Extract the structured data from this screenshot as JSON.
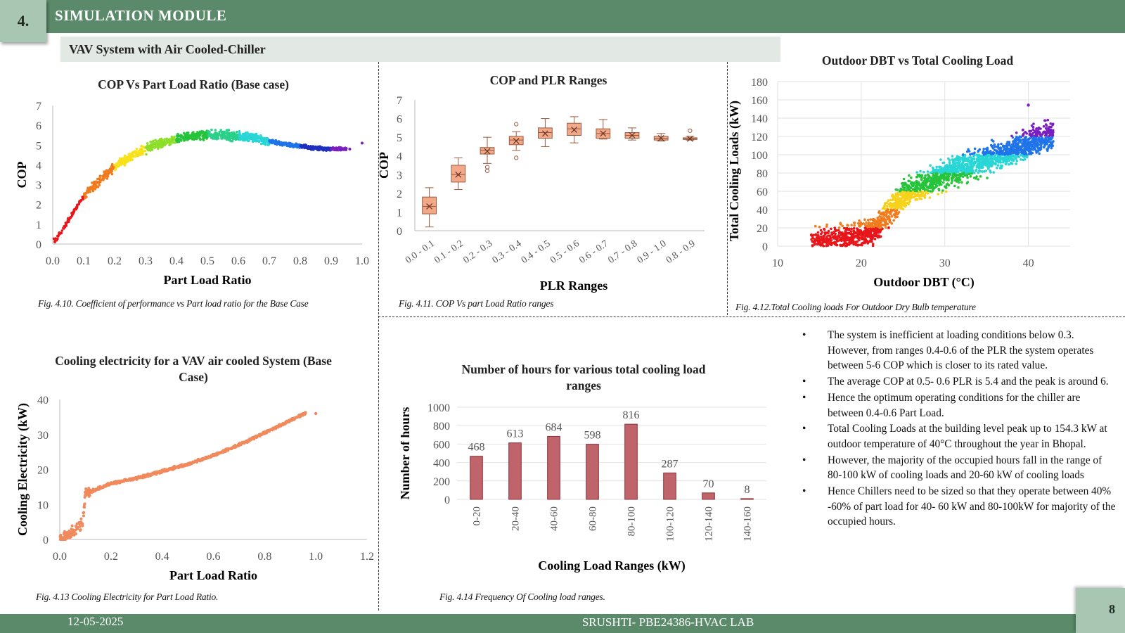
{
  "header": {
    "section_number": "4.",
    "section_title": "SIMULATION MODULE",
    "subtitle": "VAV System with Air Cooled-Chiller"
  },
  "colors": {
    "header_green": "#5a8a6a",
    "box_green": "#a9c6b3",
    "bar_fill": "#c0646b",
    "box_fill": "#f2a98a",
    "scatter_orange": "#f08a5d"
  },
  "charts": {
    "cop_plr": {
      "title": "COP Vs Part Load Ratio (Base case)",
      "xlabel": "Part Load Ratio",
      "ylabel": "COP",
      "xticks": [
        "0.0",
        "0.1",
        "0.2",
        "0.3",
        "0.4",
        "0.5",
        "0.6",
        "0.7",
        "0.8",
        "0.9",
        "1.0"
      ],
      "yticks": [
        "0",
        "1",
        "2",
        "3",
        "4",
        "5",
        "6",
        "7"
      ],
      "caption": "Fig. 4.10. Coefficient of performance vs Part load ratio for the Base Case"
    },
    "cop_ranges": {
      "title": "COP and PLR Ranges",
      "xlabel": "PLR Ranges",
      "ylabel": "COP",
      "yticks": [
        "0",
        "1",
        "2",
        "3",
        "4",
        "5",
        "6",
        "7"
      ],
      "caption": "Fig. 4.11. COP Vs part Load Ratio ranges"
    },
    "dbt_load": {
      "title": "Outdoor DBT vs Total Cooling Load",
      "xlabel": "Outdoor DBT (°C)",
      "ylabel": "Total Cooling Loads (kW)",
      "xticks": [
        "10",
        "20",
        "30",
        "40"
      ],
      "yticks": [
        "0",
        "20",
        "40",
        "60",
        "80",
        "100",
        "120",
        "140",
        "160",
        "180"
      ],
      "caption": "Fig. 4.12.Total Cooling loads For Outdoor Dry Bulb temperature"
    },
    "elec": {
      "title": "Cooling electricity for a VAV air cooled System (Base Case)",
      "xlabel": "Part Load Ratio",
      "ylabel": "Cooling Electricity (kW)",
      "xticks": [
        "0.0",
        "0.2",
        "0.4",
        "0.6",
        "0.8",
        "1.0",
        "1.2"
      ],
      "yticks": [
        "0",
        "10",
        "20",
        "30",
        "40"
      ],
      "caption": "Fig. 4.13 Cooling Electricity for Part Load Ratio."
    },
    "hours": {
      "title": "Number of hours for various total cooling load ranges",
      "xlabel": "Cooling Load Ranges (kW)",
      "ylabel": "Number of hours",
      "yticks": [
        "0",
        "200",
        "400",
        "600",
        "800",
        "1000"
      ],
      "caption": "Fig. 4.14 Frequency  Of Cooling load ranges."
    }
  },
  "chart_data": [
    {
      "type": "scatter",
      "title": "COP Vs Part Load Ratio (Base case)",
      "xlabel": "Part Load Ratio",
      "ylabel": "COP",
      "xlim": [
        0,
        1.0
      ],
      "ylim": [
        0,
        7
      ],
      "x": [
        0.01,
        0.05,
        0.1,
        0.15,
        0.2,
        0.25,
        0.3,
        0.35,
        0.4,
        0.45,
        0.5,
        0.55,
        0.6,
        0.65,
        0.7,
        0.75,
        0.8,
        0.85,
        0.9,
        0.95,
        1.0
      ],
      "y": [
        0.2,
        1.2,
        2.4,
        3.2,
        3.9,
        4.4,
        4.8,
        5.1,
        5.3,
        5.45,
        5.5,
        5.5,
        5.45,
        5.35,
        5.2,
        5.05,
        4.95,
        4.85,
        4.8,
        4.8,
        5.1
      ]
    },
    {
      "type": "box",
      "title": "COP and PLR Ranges",
      "xlabel": "PLR Ranges",
      "ylabel": "COP",
      "ylim": [
        0,
        7
      ],
      "categories": [
        "0.0 - 0.1",
        "0.1 - 0.2",
        "0.2 - 0.3",
        "0.3 - 0.4",
        "0.4 - 0.5",
        "0.5 - 0.6",
        "0.6 - 0.7",
        "0.7 - 0.8",
        "0.9 - 1.0",
        "0.8 - 0.9"
      ],
      "boxes": [
        {
          "min": 0.2,
          "q1": 0.9,
          "median": 1.3,
          "mean": 1.3,
          "q3": 1.8,
          "max": 2.3,
          "outliers": []
        },
        {
          "min": 2.2,
          "q1": 2.6,
          "median": 3.0,
          "mean": 3.0,
          "q3": 3.5,
          "max": 3.9,
          "outliers": []
        },
        {
          "min": 3.6,
          "q1": 4.1,
          "median": 4.3,
          "mean": 4.25,
          "q3": 4.45,
          "max": 5.0,
          "outliers": [
            3.2,
            3.4
          ]
        },
        {
          "min": 4.3,
          "q1": 4.6,
          "median": 4.85,
          "mean": 4.8,
          "q3": 5.05,
          "max": 5.3,
          "outliers": [
            3.9,
            5.7
          ]
        },
        {
          "min": 4.5,
          "q1": 4.95,
          "median": 5.25,
          "mean": 5.2,
          "q3": 5.5,
          "max": 6.0,
          "outliers": []
        },
        {
          "min": 4.7,
          "q1": 5.1,
          "median": 5.45,
          "mean": 5.4,
          "q3": 5.75,
          "max": 6.1,
          "outliers": []
        },
        {
          "min": 4.9,
          "q1": 4.95,
          "median": 5.2,
          "mean": 5.2,
          "q3": 5.45,
          "max": 5.95,
          "outliers": []
        },
        {
          "min": 4.85,
          "q1": 4.95,
          "median": 5.1,
          "mean": 5.1,
          "q3": 5.25,
          "max": 5.5,
          "outliers": []
        },
        {
          "min": 4.8,
          "q1": 4.85,
          "median": 4.95,
          "mean": 4.95,
          "q3": 5.05,
          "max": 5.2,
          "outliers": []
        },
        {
          "min": 4.85,
          "q1": 4.88,
          "median": 4.92,
          "mean": 4.92,
          "q3": 4.97,
          "max": 5.05,
          "outliers": [
            5.35
          ]
        }
      ]
    },
    {
      "type": "scatter",
      "title": "Outdoor DBT vs Total Cooling Load",
      "xlabel": "Outdoor DBT (°C)",
      "ylabel": "Total Cooling Loads (kW)",
      "xlim": [
        10,
        45
      ],
      "ylim": [
        0,
        180
      ],
      "x": [
        14,
        17,
        20,
        22,
        24,
        26,
        28,
        30,
        32,
        34,
        36,
        38,
        40,
        42
      ],
      "y": [
        2,
        6,
        12,
        20,
        45,
        62,
        70,
        78,
        86,
        92,
        98,
        104,
        112,
        120
      ],
      "peak": {
        "x": 40,
        "y": 154.3
      }
    },
    {
      "type": "scatter",
      "title": "Cooling electricity for a VAV air cooled System (Base Case)",
      "xlabel": "Part Load Ratio",
      "ylabel": "Cooling Electricity (kW)",
      "xlim": [
        0,
        1.2
      ],
      "ylim": [
        0,
        40
      ],
      "x": [
        0.0,
        0.05,
        0.09,
        0.1,
        0.2,
        0.3,
        0.4,
        0.5,
        0.6,
        0.7,
        0.8,
        0.9,
        0.97,
        1.0
      ],
      "y": [
        0,
        2,
        5,
        13,
        16,
        17.5,
        19.5,
        21.5,
        24,
        27,
        30.5,
        34,
        36.5,
        36
      ]
    },
    {
      "type": "bar",
      "title": "Number of hours for various total cooling load ranges",
      "xlabel": "Cooling Load Ranges (kW)",
      "ylabel": "Number of hours",
      "ylim": [
        0,
        1000
      ],
      "categories": [
        "0-20",
        "20-40",
        "40-60",
        "60-80",
        "80-100",
        "100-120",
        "120-140",
        "140-160"
      ],
      "values": [
        468,
        613,
        684,
        598,
        816,
        287,
        70,
        8
      ]
    }
  ],
  "bullets": [
    "The system is inefficient at loading conditions  below 0.3.  However, from ranges 0.4-0.6 of the PLR the system operates between 5-6 COP which is closer to its rated value.",
    "The average COP at 0.5- 0.6 PLR  is 5.4 and the peak is around 6.",
    "Hence the optimum  operating conditions  for the chiller are between 0.4-0.6 Part Load.",
    "Total Cooling  Loads at the building  level peak up to 154.3 kW at outdoor temperature of 40°C throughout the year in Bhopal.",
    "However, the majority  of the occupied hours  fall in the range of 80-100 kW of cooling loads and 20-60 kW of cooling loads",
    "Hence Chillers need to be sized so that they operate between 40% -60% of part load  for 40- 60 kW and 80-100kW  for majority  of the occupied hours."
  ],
  "bullet_symbol": "•",
  "footer": {
    "date": "12-05-2025",
    "center": "SRUSHTI- PBE24386-HVAC  LAB",
    "page": "8"
  }
}
